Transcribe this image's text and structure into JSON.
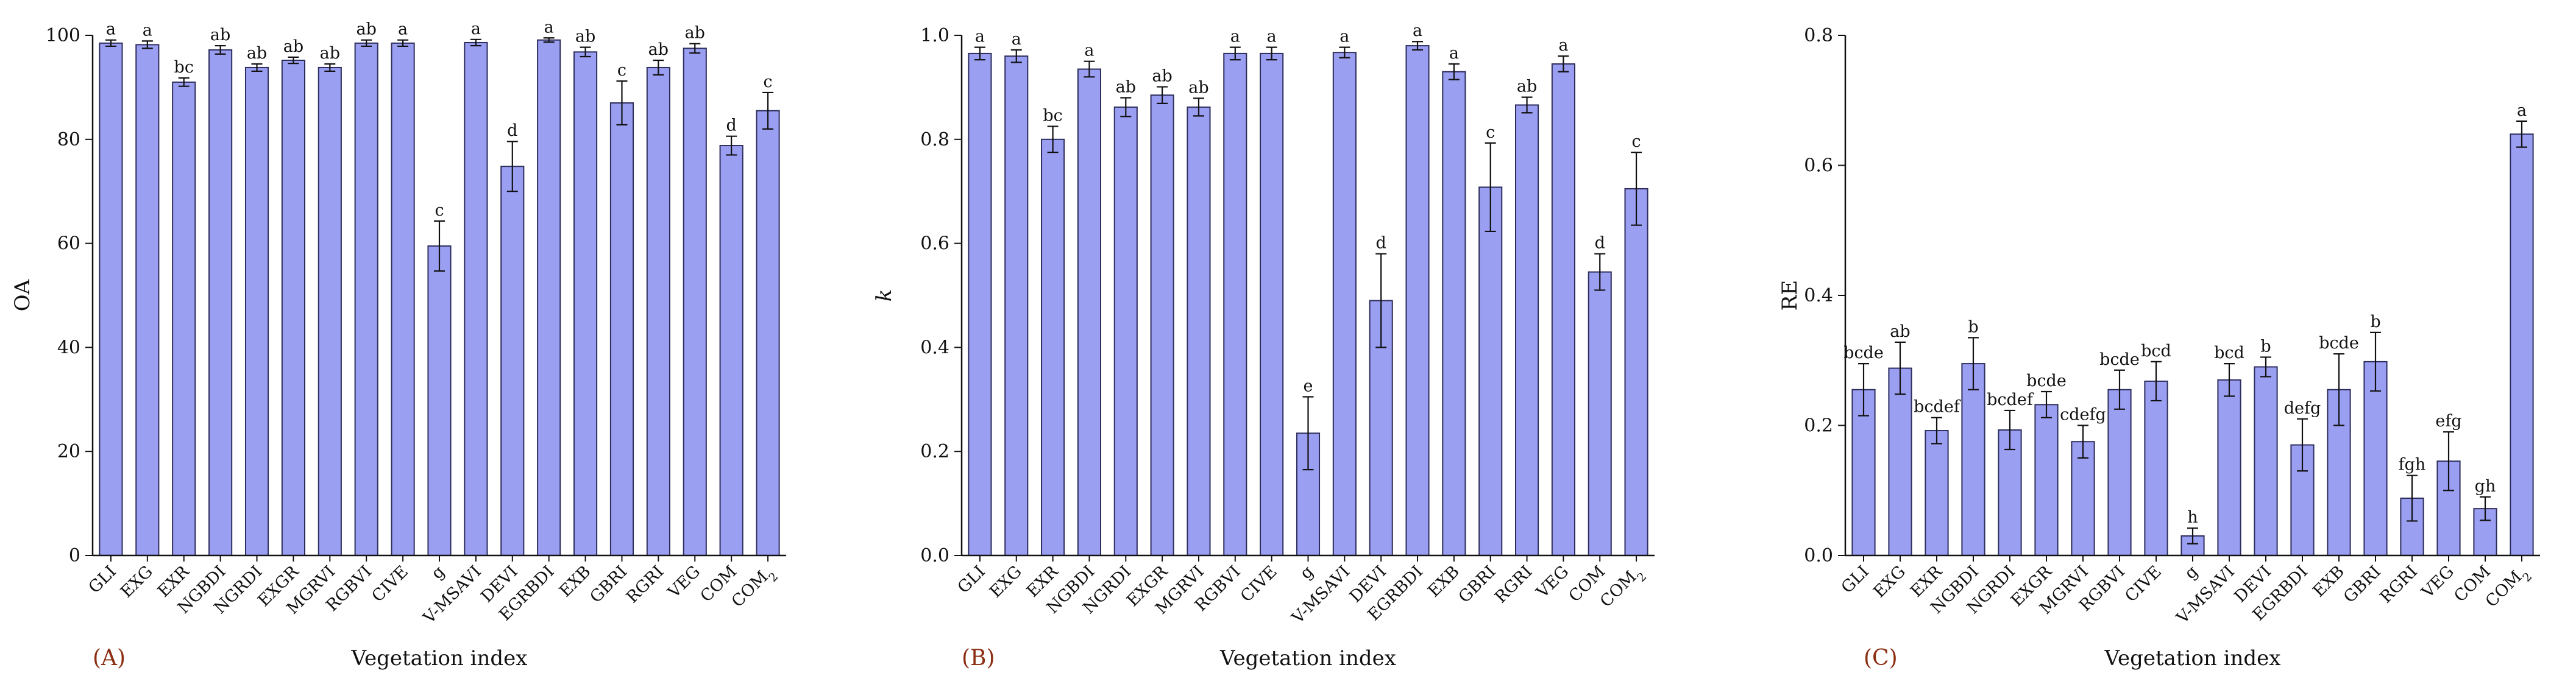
{
  "colors": {
    "bar_fill": "#9b9ff2",
    "bar_stroke": "#2d2d5c",
    "axis": "#111111",
    "panel_label": "#8b2e12"
  },
  "chart_data": [
    {
      "type": "bar",
      "panel_label": "(A)",
      "xlabel": "Vegetation index",
      "ylabel": "OA",
      "ylabel_italic": false,
      "ylim": [
        0,
        100
      ],
      "yticks": [
        0,
        20,
        40,
        60,
        80,
        100
      ],
      "ytick_labels": [
        "0",
        "20",
        "40",
        "60",
        "80",
        "100"
      ],
      "categories": [
        "GLI",
        "EXG",
        "EXR",
        "NGBDI",
        "NGRDI",
        "EXGR",
        "MGRVI",
        "RGBVI",
        "CIVE",
        "g",
        "V-MSAVI",
        "DEVI",
        "EGRBDI",
        "EXB",
        "GBRI",
        "RGRI",
        "VEG",
        "COM",
        "COM2"
      ],
      "category_labels": [
        "GLI",
        "EXG",
        "EXR",
        "NGBDI",
        "NGRDI",
        "EXGR",
        "MGRVI",
        "RGBVI",
        "CIVE",
        "g",
        "V-MSAVI",
        "DEVI",
        "EGRBDI",
        "EXB",
        "GBRI",
        "RGRI",
        "VEG",
        "COM",
        "COM"
      ],
      "category_subscripts": [
        "",
        "",
        "",
        "",
        "",
        "",
        "",
        "",
        "",
        "",
        "",
        "",
        "",
        "",
        "",
        "",
        "",
        "",
        "2"
      ],
      "values": [
        98.5,
        98.2,
        91.0,
        97.2,
        93.8,
        95.2,
        93.8,
        98.5,
        98.5,
        59.5,
        98.6,
        74.8,
        99.1,
        96.8,
        87.0,
        93.8,
        97.5,
        78.8,
        85.5
      ],
      "errors": [
        0.6,
        0.7,
        0.8,
        0.8,
        0.7,
        0.6,
        0.7,
        0.6,
        0.6,
        4.8,
        0.6,
        4.8,
        0.4,
        0.9,
        4.2,
        1.4,
        0.9,
        1.8,
        3.5
      ],
      "letters": [
        "a",
        "a",
        "bc",
        "ab",
        "ab",
        "ab",
        "ab",
        "ab",
        "a",
        "c",
        "a",
        "d",
        "a",
        "ab",
        "c",
        "ab",
        "ab",
        "d",
        "c"
      ]
    },
    {
      "type": "bar",
      "panel_label": "(B)",
      "xlabel": "Vegetation index",
      "ylabel": "k",
      "ylabel_italic": true,
      "ylim": [
        0,
        1.0
      ],
      "yticks": [
        0,
        0.2,
        0.4,
        0.6,
        0.8,
        1.0
      ],
      "ytick_labels": [
        "0.0",
        "0.2",
        "0.4",
        "0.6",
        "0.8",
        "1.0"
      ],
      "categories": [
        "GLI",
        "EXG",
        "EXR",
        "NGBDI",
        "NGRDI",
        "EXGR",
        "MGRVI",
        "RGBVI",
        "CIVE",
        "g",
        "V-MSAVI",
        "DEVI",
        "EGRBDI",
        "EXB",
        "GBRI",
        "RGRI",
        "VEG",
        "COM",
        "COM2"
      ],
      "category_labels": [
        "GLI",
        "EXG",
        "EXR",
        "NGBDI",
        "NGRDI",
        "EXGR",
        "MGRVI",
        "RGBVI",
        "CIVE",
        "g",
        "V-MSAVI",
        "DEVI",
        "EGRBDI",
        "EXB",
        "GBRI",
        "RGRI",
        "VEG",
        "COM",
        "COM"
      ],
      "category_subscripts": [
        "",
        "",
        "",
        "",
        "",
        "",
        "",
        "",
        "",
        "",
        "",
        "",
        "",
        "",
        "",
        "",
        "",
        "",
        "2"
      ],
      "values": [
        0.965,
        0.96,
        0.8,
        0.935,
        0.862,
        0.885,
        0.862,
        0.965,
        0.965,
        0.235,
        0.967,
        0.49,
        0.98,
        0.93,
        0.708,
        0.866,
        0.945,
        0.545,
        0.705
      ],
      "errors": [
        0.012,
        0.012,
        0.025,
        0.015,
        0.018,
        0.016,
        0.017,
        0.012,
        0.012,
        0.07,
        0.01,
        0.09,
        0.008,
        0.015,
        0.085,
        0.015,
        0.015,
        0.035,
        0.07
      ],
      "letters": [
        "a",
        "a",
        "bc",
        "a",
        "ab",
        "ab",
        "ab",
        "a",
        "a",
        "e",
        "a",
        "d",
        "a",
        "a",
        "c",
        "ab",
        "a",
        "d",
        "c"
      ]
    },
    {
      "type": "bar",
      "panel_label": "(C)",
      "xlabel": "Vegetation index",
      "ylabel": "RE",
      "ylabel_italic": false,
      "ylim": [
        0,
        0.8
      ],
      "yticks": [
        0,
        0.2,
        0.4,
        0.6,
        0.8
      ],
      "ytick_labels": [
        "0.0",
        "0.2",
        "0.4",
        "0.6",
        "0.8"
      ],
      "categories": [
        "GLI",
        "EXG",
        "EXR",
        "NGBDI",
        "NGRDI",
        "EXGR",
        "MGRVI",
        "RGBVI",
        "CIVE",
        "g",
        "V-MSAVI",
        "DEVI",
        "EGRBDI",
        "EXB",
        "GBRI",
        "RGRI",
        "VEG",
        "COM",
        "COM2"
      ],
      "category_labels": [
        "GLI",
        "EXG",
        "EXR",
        "NGBDI",
        "NGRDI",
        "EXGR",
        "MGRVI",
        "RGBVI",
        "CIVE",
        "g",
        "V-MSAVI",
        "DEVI",
        "EGRBDI",
        "EXB",
        "GBRI",
        "RGRI",
        "VEG",
        "COM",
        "COM"
      ],
      "category_subscripts": [
        "",
        "",
        "",
        "",
        "",
        "",
        "",
        "",
        "",
        "",
        "",
        "",
        "",
        "",
        "",
        "",
        "",
        "",
        "2"
      ],
      "values": [
        0.255,
        0.288,
        0.192,
        0.295,
        0.193,
        0.232,
        0.175,
        0.255,
        0.268,
        0.03,
        0.27,
        0.29,
        0.17,
        0.255,
        0.298,
        0.088,
        0.145,
        0.072,
        0.648
      ],
      "errors": [
        0.04,
        0.04,
        0.02,
        0.04,
        0.03,
        0.02,
        0.025,
        0.03,
        0.03,
        0.012,
        0.025,
        0.015,
        0.04,
        0.055,
        0.045,
        0.035,
        0.045,
        0.018,
        0.02
      ],
      "letters": [
        "bcde",
        "ab",
        "bcdef",
        "b",
        "bcdef",
        "bcde",
        "cdefg",
        "bcde",
        "bcd",
        "h",
        "bcd",
        "b",
        "defg",
        "bcde",
        "b",
        "fgh",
        "efg",
        "gh",
        "a"
      ]
    }
  ]
}
